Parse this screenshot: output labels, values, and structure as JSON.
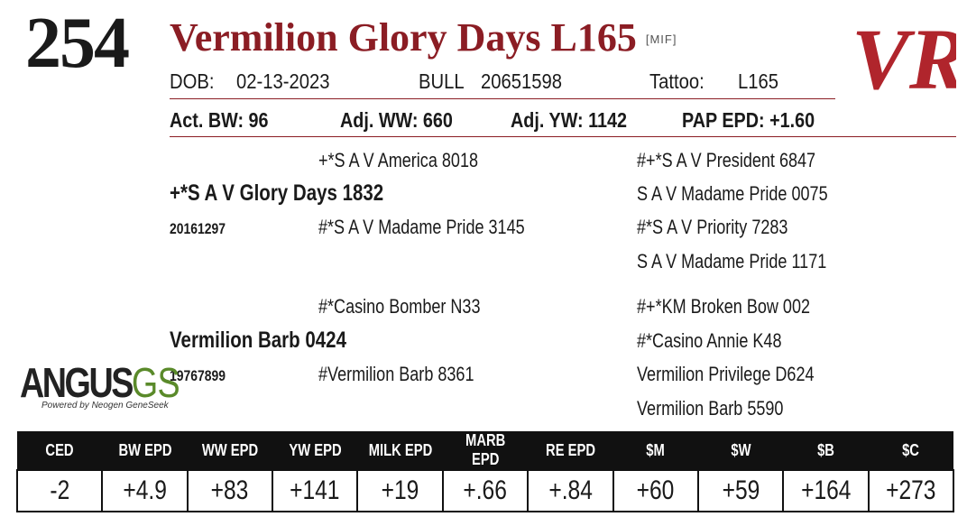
{
  "lot": "254",
  "title": "Vermilion Glory Days L165",
  "title_tag": "[MIF]",
  "logo_mark": "VR",
  "info": {
    "dob_label": "DOB:",
    "dob": "02-13-2023",
    "sex": "BULL",
    "reg": "20651598",
    "tattoo_label": "Tattoo:",
    "tattoo": "L165"
  },
  "stats": {
    "act_bw": "Act. BW: 96",
    "adj_ww": "Adj. WW: 660",
    "adj_yw": "Adj. YW: 1142",
    "pap": "PAP EPD: +1.60"
  },
  "pedigree": {
    "sire": "+*S A V Glory Days 1832",
    "sire_reg": "20161297",
    "sire_sire": "+*S A V America 8018",
    "sire_dam": "#*S A V Madame Pride 3145",
    "ss_sire": "#+*S A V President 6847",
    "ss_dam": "S A V Madame Pride 0075",
    "sd_sire": "#*S A V Priority 7283",
    "sd_dam": "S A V Madame Pride 1171",
    "dam": "Vermilion Barb 0424",
    "dam_reg": "19767899",
    "dam_sire": "#*Casino Bomber N33",
    "dam_dam": "#Vermilion Barb 8361",
    "ds_sire": "#+*KM Broken Bow 002",
    "ds_dam": "#*Casino Annie K48",
    "dd_sire": "Vermilion Privilege D624",
    "dd_dam": "Vermilion Barb 5590"
  },
  "logo": {
    "angus": "ANGUS",
    "gs": "GS",
    "sub": "Powered by Neogen GeneSeek"
  },
  "epd": {
    "headers": [
      "CED",
      "BW EPD",
      "WW EPD",
      "YW EPD",
      "MILK EPD",
      "MARB EPD",
      "RE EPD",
      "$M",
      "$W",
      "$B",
      "$C"
    ],
    "values": [
      "-2",
      "+4.9",
      "+83",
      "+141",
      "+19",
      "+.66",
      "+.84",
      "+60",
      "+59",
      "+164",
      "+273"
    ]
  },
  "colors": {
    "accent": "#8b1d24",
    "header_bg": "#111111",
    "logo_green": "#5a8a2a"
  }
}
